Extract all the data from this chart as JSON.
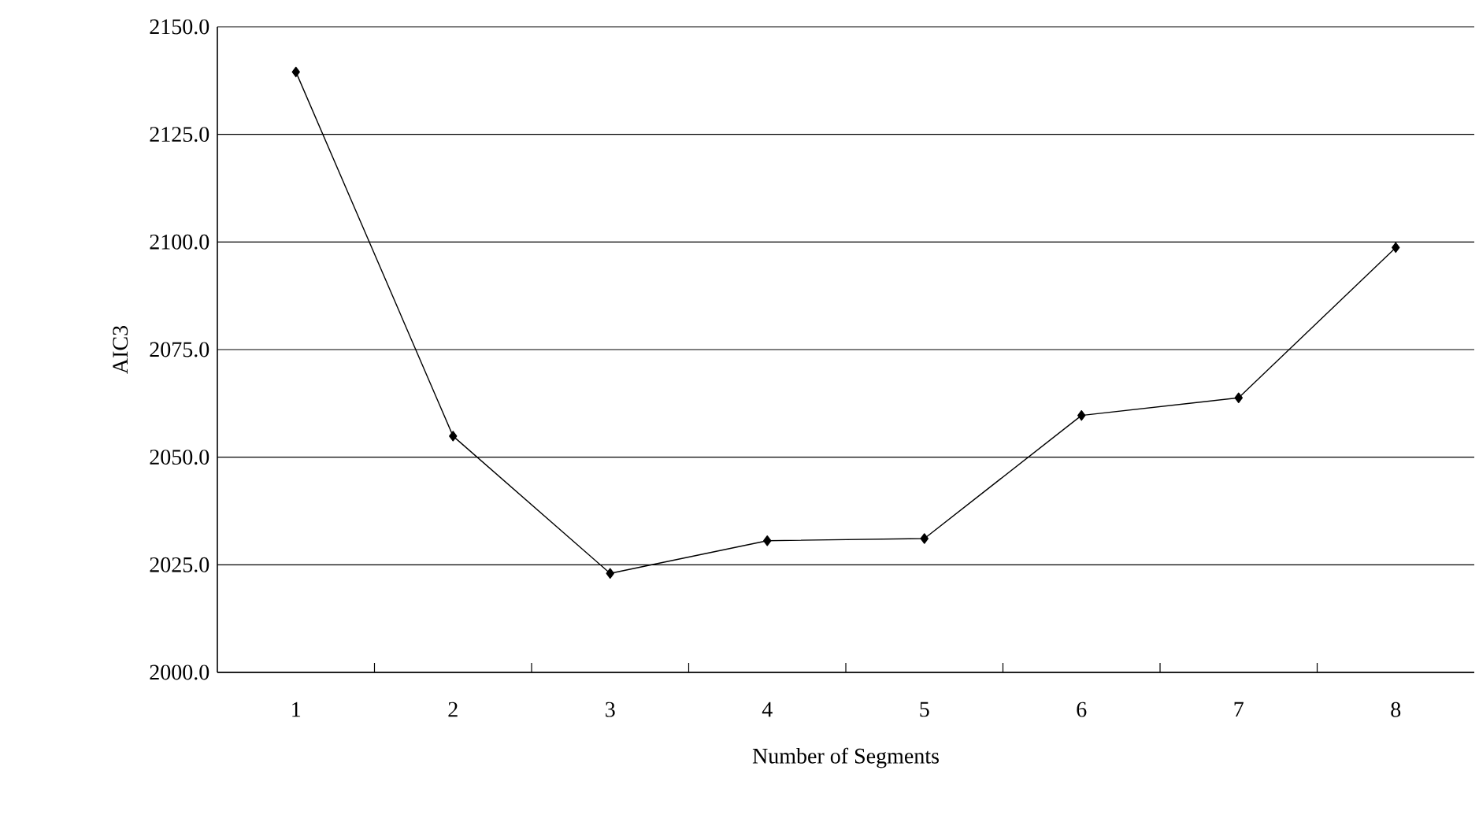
{
  "chart_data": {
    "type": "line",
    "xlabel": "Number of Segments",
    "ylabel": "AIC3",
    "categories": [
      "1",
      "2",
      "3",
      "4",
      "5",
      "6",
      "7",
      "8"
    ],
    "series": [
      {
        "color": "#000000",
        "values": [
          2139.5,
          2054.9,
          2023.0,
          2030.6,
          2031.1,
          2059.7,
          2063.8,
          2098.7
        ]
      }
    ],
    "ylim": [
      2000,
      2150
    ],
    "yticks": [
      {
        "value": 2000,
        "label": "2000.0"
      },
      {
        "value": 2025,
        "label": "2025.0"
      },
      {
        "value": 2050,
        "label": "2050.0"
      },
      {
        "value": 2075,
        "label": "2075.0"
      },
      {
        "value": 2100,
        "label": "2100.0"
      },
      {
        "value": 2125,
        "label": "2125.0"
      },
      {
        "value": 2150,
        "label": "2150.0"
      }
    ],
    "grid": "y",
    "marker": "diamond",
    "line_style": "solid"
  }
}
